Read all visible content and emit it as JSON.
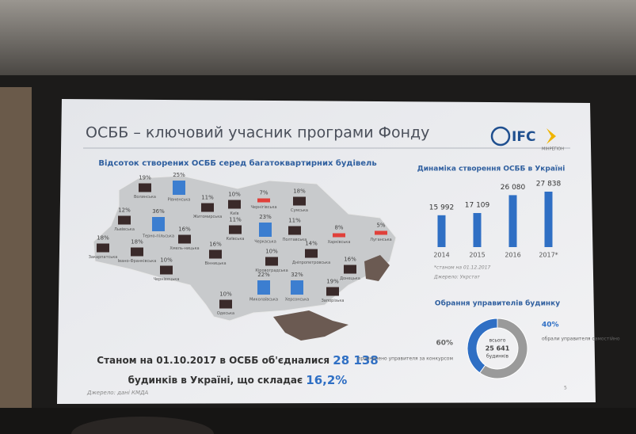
{
  "slide": {
    "title": "ОСББ – ключовий учасник програми Фонду",
    "logo": "IFC",
    "logo_sub": "МІНРЕГІОН",
    "map": {
      "title": "Відсоток створених ОСББ серед багатоквартирних будівель",
      "regions": [
        {
          "name": "Волинська",
          "label": "19%",
          "color": "#3a2a2a"
        },
        {
          "name": "Рівненська",
          "label": "25%",
          "color": "#3c7ed0"
        },
        {
          "name": "Житомирська",
          "label": "11%",
          "color": "#3a2a2a"
        },
        {
          "name": "Київ",
          "label": "10%",
          "color": "#3a2a2a"
        },
        {
          "name": "Чернігівська",
          "label": "7%",
          "color": "#e0403a"
        },
        {
          "name": "Сумська",
          "label": "18%",
          "color": "#3a2a2a"
        },
        {
          "name": "Львівська",
          "label": "12%",
          "color": "#3a2a2a"
        },
        {
          "name": "Терно-пільська",
          "label": "36%",
          "color": "#3c7ed0"
        },
        {
          "name": "Хмель-ницька",
          "label": "16%",
          "color": "#3a2a2a"
        },
        {
          "name": "Київська",
          "label": "11%",
          "color": "#3a2a2a"
        },
        {
          "name": "Черкаська",
          "label": "23%",
          "color": "#3c7ed0"
        },
        {
          "name": "Полтавська",
          "label": "11%",
          "color": "#3a2a2a"
        },
        {
          "name": "Харківська",
          "label": "8%",
          "color": "#e0403a"
        },
        {
          "name": "Луганська",
          "label": "5%",
          "color": "#e0403a"
        },
        {
          "name": "Закарпатська",
          "label": "18%",
          "color": "#3a2a2a"
        },
        {
          "name": "Івано-Франківська",
          "label": "18%",
          "color": "#3a2a2a"
        },
        {
          "name": "Чернівецька",
          "label": "10%",
          "color": "#3a2a2a"
        },
        {
          "name": "Вінницька",
          "label": "16%",
          "color": "#3a2a2a"
        },
        {
          "name": "Кіровоградська",
          "label": "10%",
          "color": "#3a2a2a"
        },
        {
          "name": "Дніпропетровська",
          "label": "14%",
          "color": "#3a2a2a"
        },
        {
          "name": "Донецька",
          "label": "16%",
          "color": "#3a2a2a"
        },
        {
          "name": "Миколаївська",
          "label": "22%",
          "color": "#3c7ed0"
        },
        {
          "name": "Херсонська",
          "label": "32%",
          "color": "#3c7ed0"
        },
        {
          "name": "Запорізька",
          "label": "19%",
          "color": "#3a2a2a"
        },
        {
          "name": "Одеська",
          "label": "10%",
          "color": "#3a2a2a"
        }
      ]
    },
    "summary": {
      "line1": "Станом на 01.10.2017 в ОСББ об'єдналися",
      "line1_value": "28 138",
      "line2": "будинків в Україні, що складає",
      "line2_value": "16,2%"
    },
    "source": "Джерело: дані КМДА",
    "page": "5"
  },
  "chart_data": [
    {
      "type": "bar",
      "title": "Динаміка створення ОСББ в Україні",
      "categories": [
        "2014",
        "2015",
        "2016",
        "2017*"
      ],
      "values": [
        15992,
        17109,
        26080,
        27838
      ],
      "value_labels": [
        "15 992",
        "17 109",
        "26 080",
        "27 838"
      ],
      "color": "#2f6fc4",
      "note": "*станом на 01.12.2017",
      "source": "Джерело: Укрстат"
    },
    {
      "type": "pie",
      "title": "Обрання управителів будинку",
      "categories": [
        "призначено управителя за конкурсом",
        "обрали управителя самостійно"
      ],
      "values": [
        60,
        40
      ],
      "value_labels": [
        "60%",
        "40%"
      ],
      "colors": [
        "#9a9a9a",
        "#2f6fc4"
      ],
      "center": [
        "всього",
        "25 641",
        "будинків"
      ]
    }
  ]
}
